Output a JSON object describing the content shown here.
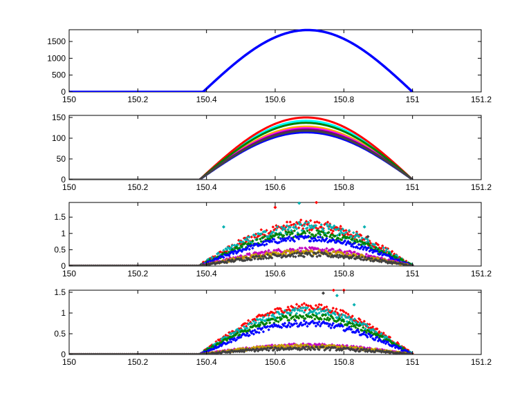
{
  "chart_data": [
    {
      "type": "line",
      "title": "",
      "xlabel": "",
      "ylabel": "",
      "xlim": [
        150,
        151.2
      ],
      "ylim": [
        0,
        1850
      ],
      "xticks": [
        "150",
        "150.2",
        "150.4",
        "150.6",
        "150.8",
        "151",
        "151.2"
      ],
      "yticks": [
        "0",
        "500",
        "1000",
        "1500"
      ],
      "grid": false,
      "series": [
        {
          "color": "#0000ff",
          "shape": "sine-hump",
          "x_start": 150,
          "x_rise": 150.39,
          "x_end": 151,
          "peak": 1840,
          "noise": 0
        }
      ]
    },
    {
      "type": "line",
      "title": "",
      "xlabel": "",
      "ylabel": "",
      "xlim": [
        150,
        151.2
      ],
      "ylim": [
        0,
        155
      ],
      "xticks": [
        "150",
        "150.2",
        "150.4",
        "150.6",
        "150.8",
        "151",
        "151.2"
      ],
      "yticks": [
        "0",
        "50",
        "100",
        "150"
      ],
      "grid": false,
      "series": [
        {
          "color": "#ffb000",
          "shape": "sine-hump",
          "x_start": 150,
          "x_rise": 150.38,
          "x_end": 151,
          "peak": 128,
          "noise": 0
        },
        {
          "color": "#ff00ff",
          "shape": "sine-hump",
          "x_start": 150,
          "x_rise": 150.38,
          "x_end": 151,
          "peak": 124,
          "noise": 0
        },
        {
          "color": "#00ffff",
          "shape": "sine-hump",
          "x_start": 150,
          "x_rise": 150.38,
          "x_end": 151,
          "peak": 142,
          "noise": 0
        },
        {
          "color": "#ff0000",
          "shape": "sine-hump",
          "x_start": 150,
          "x_rise": 150.38,
          "x_end": 151,
          "peak": 150,
          "noise": 0
        },
        {
          "color": "#008000",
          "shape": "sine-hump",
          "x_start": 150,
          "x_rise": 150.38,
          "x_end": 151,
          "peak": 137,
          "noise": 0
        },
        {
          "color": "#800080",
          "shape": "sine-hump",
          "x_start": 150,
          "x_rise": 150.38,
          "x_end": 151,
          "peak": 121,
          "noise": 0
        },
        {
          "color": "#0000ff",
          "shape": "sine-hump",
          "x_start": 150,
          "x_rise": 150.38,
          "x_end": 151,
          "peak": 114,
          "noise": 0
        },
        {
          "color": "#444444",
          "shape": "sine-hump",
          "x_start": 150,
          "x_rise": 150.38,
          "x_end": 151,
          "peak": 118,
          "noise": 0
        }
      ]
    },
    {
      "type": "scatter",
      "title": "",
      "xlabel": "",
      "ylabel": "",
      "xlim": [
        150,
        151.2
      ],
      "ylim": [
        0,
        1.95
      ],
      "xticks": [
        "150",
        "150.2",
        "150.4",
        "150.6",
        "150.8",
        "151",
        "151.2"
      ],
      "yticks": [
        "0",
        "0.5",
        "1",
        "1.5"
      ],
      "grid": false,
      "series": [
        {
          "color": "#ff0000",
          "shape": "sine-hump",
          "x_start": 150,
          "x_rise": 150.38,
          "x_end": 151,
          "peak": 1.25,
          "noise": 0.12
        },
        {
          "color": "#00b0b0",
          "shape": "sine-hump",
          "x_start": 150,
          "x_rise": 150.38,
          "x_end": 151,
          "peak": 1.18,
          "noise": 0.12
        },
        {
          "color": "#008000",
          "shape": "sine-hump",
          "x_start": 150,
          "x_rise": 150.38,
          "x_end": 151,
          "peak": 1.0,
          "noise": 0.08
        },
        {
          "color": "#0000ff",
          "shape": "sine-hump",
          "x_start": 150,
          "x_rise": 150.38,
          "x_end": 151,
          "peak": 0.85,
          "noise": 0.06
        },
        {
          "color": "#c000c0",
          "shape": "sine-hump",
          "x_start": 150,
          "x_rise": 150.38,
          "x_end": 151,
          "peak": 0.5,
          "noise": 0.05
        },
        {
          "color": "#c8a000",
          "shape": "sine-hump",
          "x_start": 150,
          "x_rise": 150.38,
          "x_end": 151,
          "peak": 0.42,
          "noise": 0.05
        },
        {
          "color": "#404040",
          "shape": "sine-hump",
          "x_start": 150,
          "x_rise": 150.38,
          "x_end": 151,
          "peak": 0.35,
          "noise": 0.05
        }
      ],
      "outliers": [
        {
          "x": 150.72,
          "y": 1.95,
          "color": "#ff0000"
        },
        {
          "x": 150.67,
          "y": 1.93,
          "color": "#00b0b0"
        },
        {
          "x": 150.6,
          "y": 1.8,
          "color": "#ff0000"
        },
        {
          "x": 150.86,
          "y": 1.2,
          "color": "#00b0b0"
        },
        {
          "x": 150.87,
          "y": 0.9,
          "color": "#404040"
        },
        {
          "x": 150.45,
          "y": 1.2,
          "color": "#00b0b0"
        }
      ]
    },
    {
      "type": "scatter",
      "title": "",
      "xlabel": "",
      "ylabel": "",
      "xlim": [
        150,
        151.2
      ],
      "ylim": [
        0,
        1.55
      ],
      "xticks": [
        "150",
        "150.2",
        "150.4",
        "150.6",
        "150.8",
        "151",
        "151.2"
      ],
      "yticks": [
        "0",
        "0.5",
        "1",
        "1.5"
      ],
      "grid": false,
      "series": [
        {
          "color": "#ff0000",
          "shape": "sine-hump",
          "x_start": 150,
          "x_rise": 150.38,
          "x_end": 151,
          "peak": 1.15,
          "noise": 0.06
        },
        {
          "color": "#00b0b0",
          "shape": "sine-hump",
          "x_start": 150,
          "x_rise": 150.38,
          "x_end": 151,
          "peak": 1.05,
          "noise": 0.06
        },
        {
          "color": "#008000",
          "shape": "sine-hump",
          "x_start": 150,
          "x_rise": 150.38,
          "x_end": 151,
          "peak": 0.92,
          "noise": 0.05
        },
        {
          "color": "#0000ff",
          "shape": "sine-hump",
          "x_start": 150,
          "x_rise": 150.38,
          "x_end": 151,
          "peak": 0.75,
          "noise": 0.05
        },
        {
          "color": "#c000c0",
          "shape": "sine-hump",
          "x_start": 150,
          "x_rise": 150.38,
          "x_end": 151,
          "peak": 0.22,
          "noise": 0.03
        },
        {
          "color": "#c8a000",
          "shape": "sine-hump",
          "x_start": 150,
          "x_rise": 150.38,
          "x_end": 151,
          "peak": 0.2,
          "noise": 0.03
        },
        {
          "color": "#404040",
          "shape": "sine-hump",
          "x_start": 150,
          "x_rise": 150.38,
          "x_end": 151,
          "peak": 0.15,
          "noise": 0.03
        }
      ],
      "outliers": [
        {
          "x": 150.77,
          "y": 1.55,
          "color": "#ff0000"
        },
        {
          "x": 150.8,
          "y": 1.55,
          "color": "#ff0000"
        },
        {
          "x": 150.78,
          "y": 1.42,
          "color": "#00b0b0"
        },
        {
          "x": 150.74,
          "y": 1.48,
          "color": "#404040"
        },
        {
          "x": 150.83,
          "y": 1.2,
          "color": "#00b0b0"
        }
      ]
    }
  ]
}
